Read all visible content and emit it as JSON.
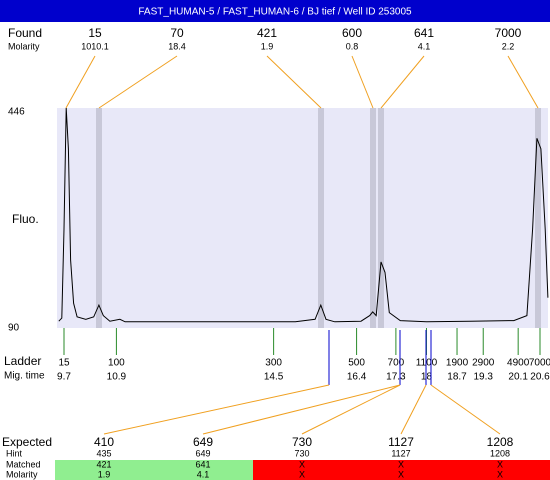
{
  "title": "FAST_HUMAN-5 / FAST_HUMAN-6 / BJ tief / Well ID 253005",
  "found": {
    "label": "Found",
    "molarity_label": "Molarity",
    "sizes": [
      15,
      70,
      421,
      600,
      641,
      7000
    ],
    "molarity": [
      1010.1,
      18.4,
      1.9,
      0.8,
      4.1,
      2.2
    ]
  },
  "plot": {
    "axis_label": "Fluo.",
    "ticks": [
      446,
      90
    ],
    "trace": {
      "mig_time": [
        9.58,
        9.65,
        9.7,
        9.75,
        9.8,
        9.85,
        9.92,
        10.0,
        10.2,
        10.38,
        10.5,
        10.6,
        10.75,
        10.98,
        11.1,
        12,
        13,
        14,
        15.0,
        15.45,
        15.58,
        15.7,
        15.9,
        16.5,
        16.7,
        16.77,
        16.85,
        16.96,
        17.05,
        17.15,
        17.4,
        18,
        19,
        20,
        20.3,
        20.43,
        20.53,
        20.62,
        20.72,
        20.78
      ],
      "fluo": [
        101,
        106,
        250,
        446,
        380,
        200,
        130,
        108,
        104,
        108,
        127,
        110,
        101,
        104,
        100,
        100,
        100,
        100,
        100,
        104,
        127,
        104,
        100,
        101,
        110,
        116,
        110,
        197,
        180,
        115,
        102,
        100,
        101,
        102,
        110,
        250,
        397,
        380,
        250,
        139
      ]
    }
  },
  "ladder": {
    "label": "Ladder",
    "mig_label": "Mig. time",
    "sizes": [
      15,
      100,
      300,
      500,
      700,
      1100,
      1900,
      2900,
      4900,
      7000
    ],
    "mig_time": [
      9.7,
      10.9,
      14.5,
      16.4,
      17.3,
      18,
      18.7,
      19.3,
      20.1,
      20.6
    ]
  },
  "table": {
    "row_labels": [
      "Expected",
      "Hint",
      "Matched",
      "Molarity"
    ],
    "rows": [
      [
        410,
        649,
        730,
        1127,
        1208
      ],
      [
        435,
        649,
        730,
        1127,
        1208
      ],
      [
        421,
        641,
        "X",
        "X",
        "X"
      ],
      [
        1.9,
        4.1,
        "X",
        "X",
        "X"
      ]
    ]
  }
}
